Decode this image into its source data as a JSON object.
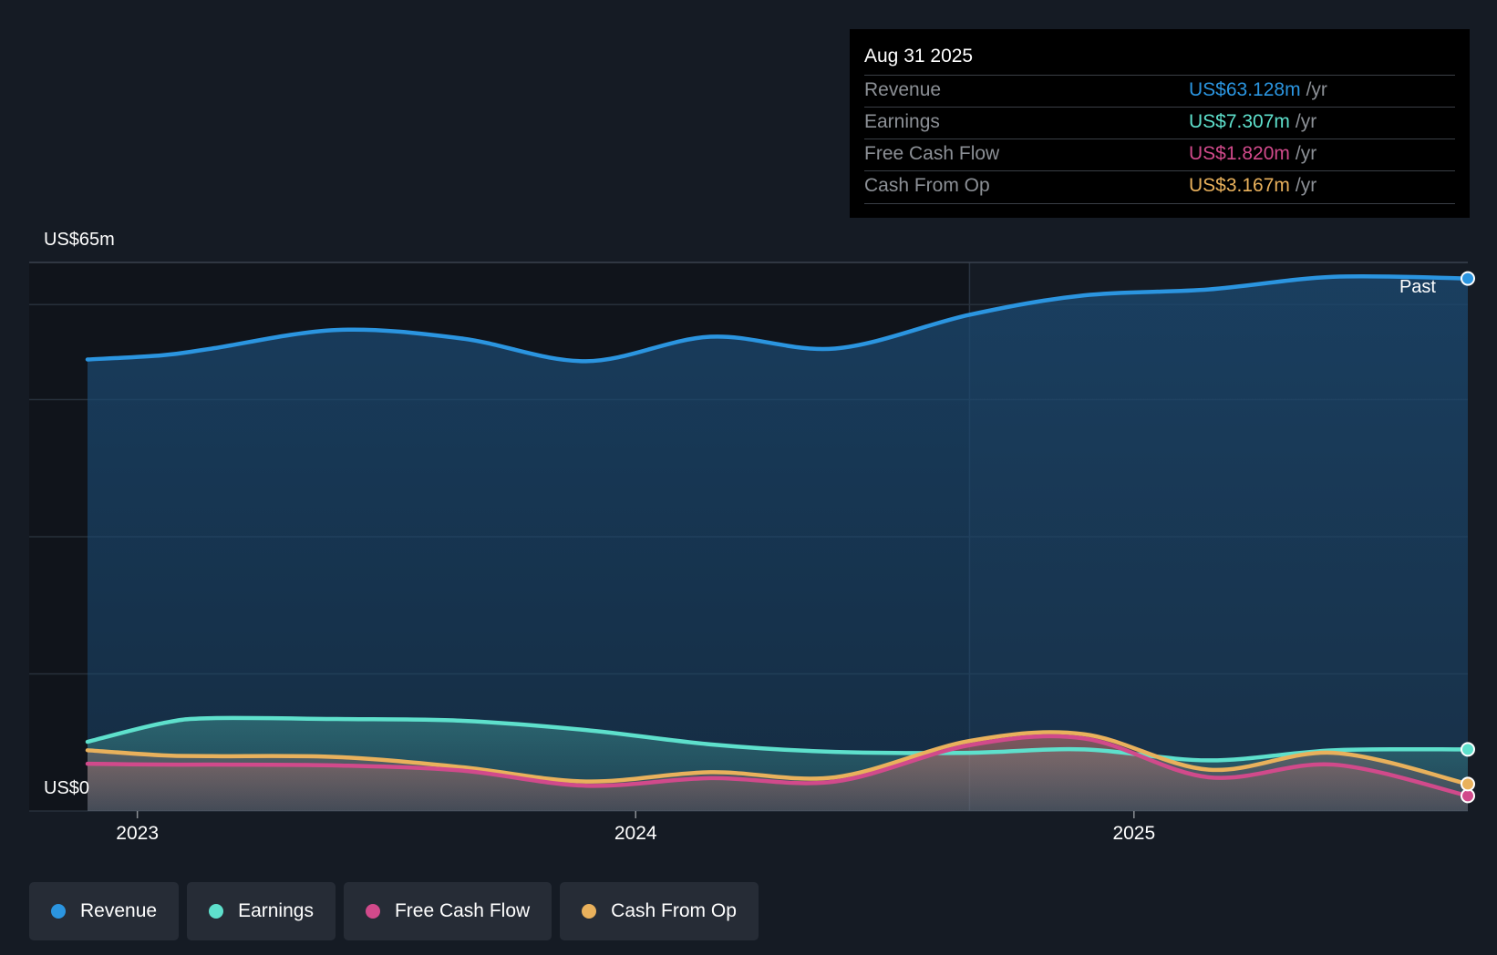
{
  "tooltip": {
    "date": "Aug 31 2025",
    "rows": [
      {
        "label": "Revenue",
        "value": "US$63.128m",
        "unit": "/yr",
        "color": "#2b95e0"
      },
      {
        "label": "Earnings",
        "value": "US$7.307m",
        "unit": "/yr",
        "color": "#5ee0cc"
      },
      {
        "label": "Free Cash Flow",
        "value": "US$1.820m",
        "unit": "/yr",
        "color": "#d14a8b"
      },
      {
        "label": "Cash From Op",
        "value": "US$3.167m",
        "unit": "/yr",
        "color": "#e9b15c"
      }
    ]
  },
  "legend": [
    {
      "label": "Revenue",
      "color": "#2b95e0"
    },
    {
      "label": "Earnings",
      "color": "#5ee0cc"
    },
    {
      "label": "Free Cash Flow",
      "color": "#d14a8b"
    },
    {
      "label": "Cash From Op",
      "color": "#e9b15c"
    }
  ],
  "chart_data": {
    "type": "area",
    "title": "",
    "y_top_label": "US$65m",
    "y_bottom_label": "US$0",
    "ylim": [
      0,
      65
    ],
    "xlim": [
      2022.9,
      2025.67
    ],
    "x_ticks": [
      2023,
      2024,
      2025
    ],
    "x_tick_labels": [
      "2023",
      "2024",
      "2025"
    ],
    "past_label": "Past",
    "past_start": 2024.67,
    "series": [
      {
        "name": "Revenue",
        "color": "#2b95e0",
        "x": [
          2022.9,
          2023.05,
          2023.15,
          2023.4,
          2023.65,
          2023.9,
          2024.15,
          2024.4,
          2024.67,
          2024.9,
          2025.15,
          2025.4,
          2025.67
        ],
        "values": [
          53.5,
          54.0,
          54.8,
          57.0,
          56.0,
          53.3,
          56.2,
          54.8,
          58.8,
          61.1,
          61.8,
          63.3,
          63.1
        ]
      },
      {
        "name": "Earnings",
        "color": "#5ee0cc",
        "x": [
          2022.9,
          2023.05,
          2023.15,
          2023.4,
          2023.65,
          2023.9,
          2024.15,
          2024.4,
          2024.67,
          2024.9,
          2025.15,
          2025.4,
          2025.67
        ],
        "values": [
          8.2,
          10.4,
          11.0,
          10.9,
          10.7,
          9.6,
          7.9,
          7.0,
          6.9,
          7.3,
          6.0,
          7.2,
          7.3
        ]
      },
      {
        "name": "Free Cash Flow",
        "color": "#d14a8b",
        "x": [
          2022.9,
          2023.05,
          2023.15,
          2023.4,
          2023.65,
          2023.9,
          2024.15,
          2024.4,
          2024.67,
          2024.9,
          2025.15,
          2025.4,
          2025.67
        ],
        "values": [
          5.6,
          5.5,
          5.5,
          5.4,
          4.8,
          3.0,
          3.9,
          3.5,
          7.8,
          8.6,
          4.0,
          5.5,
          1.8
        ]
      },
      {
        "name": "Cash From Op",
        "color": "#e9b15c",
        "x": [
          2022.9,
          2023.05,
          2023.15,
          2023.4,
          2023.65,
          2023.9,
          2024.15,
          2024.4,
          2024.67,
          2024.9,
          2025.15,
          2025.4,
          2025.67
        ],
        "values": [
          7.2,
          6.6,
          6.5,
          6.4,
          5.2,
          3.5,
          4.6,
          4.0,
          8.3,
          9.1,
          4.9,
          6.9,
          3.2
        ]
      }
    ]
  }
}
